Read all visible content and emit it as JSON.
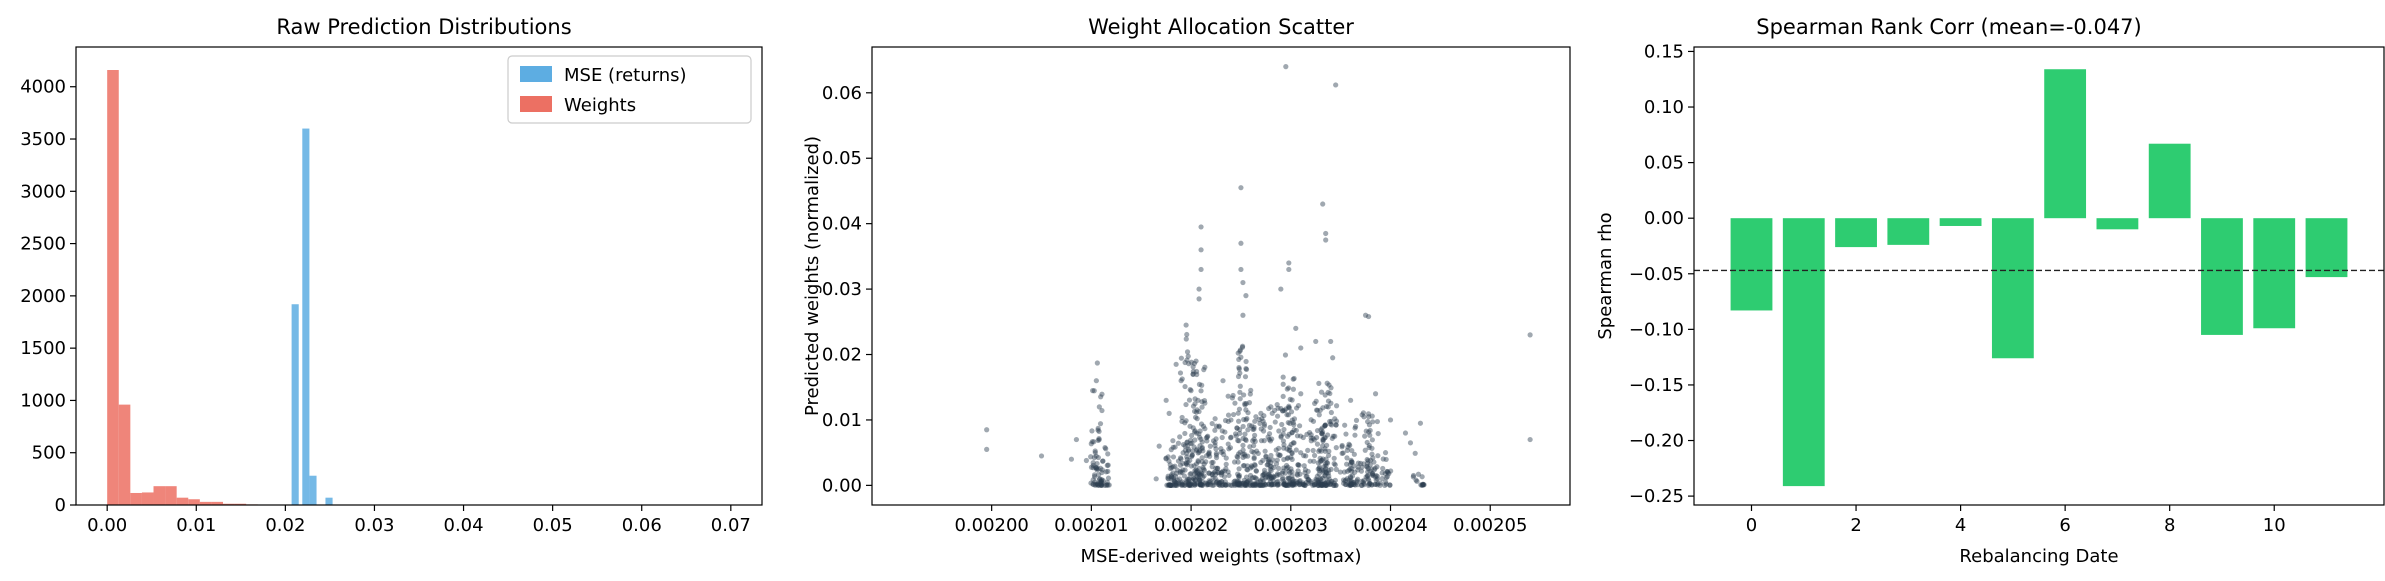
{
  "colors": {
    "mse": "#5dade2",
    "weights": "#ec7063",
    "scatter": "#2c3e50",
    "bars": "#2ecc71",
    "meanline": "#222222"
  },
  "chart_data": [
    {
      "type": "histogram",
      "title": "Raw Prediction Distributions",
      "xlabel": "",
      "ylabel": "",
      "xlim": [
        -0.0035,
        0.0735
      ],
      "ylim": [
        0,
        4380
      ],
      "xticks": [
        0.0,
        0.01,
        0.02,
        0.03,
        0.04,
        0.05,
        0.06,
        0.07
      ],
      "xtick_labels": [
        "0.00",
        "0.01",
        "0.02",
        "0.03",
        "0.04",
        "0.05",
        "0.06",
        "0.07"
      ],
      "yticks": [
        0,
        500,
        1000,
        1500,
        2000,
        2500,
        3000,
        3500,
        4000
      ],
      "yticks_labels": [
        "0",
        "500",
        "1000",
        "1500",
        "2000",
        "2500",
        "3000",
        "3500",
        "4000"
      ],
      "legend": {
        "placement": "top-right",
        "entries": [
          "MSE (returns)",
          "Weights"
        ]
      },
      "series": [
        {
          "name": "Weights",
          "color_key": "weights",
          "alpha": 0.85,
          "bins": [
            {
              "x0": 0.0,
              "x1": 0.0013,
              "count": 4160
            },
            {
              "x0": 0.0013,
              "x1": 0.0026,
              "count": 960
            },
            {
              "x0": 0.0026,
              "x1": 0.0039,
              "count": 115
            },
            {
              "x0": 0.0039,
              "x1": 0.0052,
              "count": 120
            },
            {
              "x0": 0.0052,
              "x1": 0.0065,
              "count": 180
            },
            {
              "x0": 0.0065,
              "x1": 0.0078,
              "count": 180
            },
            {
              "x0": 0.0078,
              "x1": 0.0091,
              "count": 70
            },
            {
              "x0": 0.0091,
              "x1": 0.0104,
              "count": 55
            },
            {
              "x0": 0.0104,
              "x1": 0.0117,
              "count": 30
            },
            {
              "x0": 0.0117,
              "x1": 0.013,
              "count": 30
            },
            {
              "x0": 0.013,
              "x1": 0.0143,
              "count": 12
            },
            {
              "x0": 0.0143,
              "x1": 0.0156,
              "count": 12
            },
            {
              "x0": 0.0156,
              "x1": 0.0169,
              "count": 6
            }
          ]
        },
        {
          "name": "MSE (returns)",
          "color_key": "mse",
          "alpha": 0.85,
          "bins": [
            {
              "x0": 0.0207,
              "x1": 0.0215,
              "count": 1920
            },
            {
              "x0": 0.0219,
              "x1": 0.0227,
              "count": 3600
            },
            {
              "x0": 0.0227,
              "x1": 0.0235,
              "count": 280
            },
            {
              "x0": 0.0245,
              "x1": 0.0253,
              "count": 70
            }
          ]
        }
      ]
    },
    {
      "type": "scatter",
      "title": "Weight Allocation Scatter",
      "xlabel": "MSE-derived weights (softmax)",
      "ylabel": "Predicted weights (normalized)",
      "xlim": [
        0.001988,
        0.002058
      ],
      "ylim": [
        -0.003,
        0.067
      ],
      "xticks": [
        0.002,
        0.00201,
        0.00202,
        0.00203,
        0.00204,
        0.00205
      ],
      "xtick_labels": [
        "0.00200",
        "0.00201",
        "0.00202",
        "0.00203",
        "0.00204",
        "0.00205"
      ],
      "yticks": [
        0.0,
        0.01,
        0.02,
        0.03,
        0.04,
        0.05,
        0.06
      ],
      "ytick_labels": [
        "0.00",
        "0.01",
        "0.02",
        "0.03",
        "0.04",
        "0.05",
        "0.06"
      ],
      "color_key": "scatter",
      "alpha": 0.45,
      "points": [
        [
          0.0019995,
          0.0085
        ],
        [
          0.0019995,
          0.0055
        ],
        [
          0.002005,
          0.0045
        ],
        [
          0.002008,
          0.004
        ],
        [
          0.0020085,
          0.007
        ],
        [
          0.0020095,
          0.0038
        ],
        [
          0.0020105,
          0.016
        ],
        [
          0.0020106,
          0.0187
        ],
        [
          0.0020108,
          0.012
        ],
        [
          0.0020165,
          0.001
        ],
        [
          0.0020168,
          0.006
        ],
        [
          0.0020175,
          0.013
        ],
        [
          0.0020178,
          0.011
        ],
        [
          0.0020195,
          0.0245
        ],
        [
          0.0020185,
          0.0185
        ],
        [
          0.002019,
          0.016
        ],
        [
          0.002021,
          0.0395
        ],
        [
          0.002021,
          0.036
        ],
        [
          0.002021,
          0.033
        ],
        [
          0.0020208,
          0.03
        ],
        [
          0.0020208,
          0.0285
        ],
        [
          0.0020205,
          0.019
        ],
        [
          0.0020202,
          0.017
        ],
        [
          0.0020232,
          0.016
        ],
        [
          0.002024,
          0.01
        ],
        [
          0.0020248,
          0.018
        ],
        [
          0.002025,
          0.0455
        ],
        [
          0.002025,
          0.037
        ],
        [
          0.002025,
          0.033
        ],
        [
          0.0020252,
          0.031
        ],
        [
          0.0020255,
          0.029
        ],
        [
          0.0020252,
          0.026
        ],
        [
          0.0020265,
          0.0105
        ],
        [
          0.002027,
          0.011
        ],
        [
          0.002028,
          0.012
        ],
        [
          0.002029,
          0.03
        ],
        [
          0.0020295,
          0.064
        ],
        [
          0.0020298,
          0.034
        ],
        [
          0.0020298,
          0.033
        ],
        [
          0.0020305,
          0.024
        ],
        [
          0.002031,
          0.021
        ],
        [
          0.002031,
          0.014
        ],
        [
          0.0020325,
          0.022
        ],
        [
          0.0020332,
          0.043
        ],
        [
          0.0020335,
          0.0385
        ],
        [
          0.0020335,
          0.0375
        ],
        [
          0.0020345,
          0.0612
        ],
        [
          0.002034,
          0.022
        ],
        [
          0.0020342,
          0.0195
        ],
        [
          0.002036,
          0.013
        ],
        [
          0.0020365,
          0.009
        ],
        [
          0.0020375,
          0.026
        ],
        [
          0.0020378,
          0.0258
        ],
        [
          0.0020385,
          0.014
        ],
        [
          0.00204,
          0.01
        ],
        [
          0.0020395,
          0.005
        ],
        [
          0.0020415,
          0.008
        ],
        [
          0.002042,
          0.0065
        ],
        [
          0.002043,
          0.0095
        ],
        [
          0.002054,
          0.023
        ],
        [
          0.002054,
          0.007
        ]
      ],
      "columns": [
        {
          "x": 0.0020105,
          "top": 0.016,
          "n": 45
        },
        {
          "x": 0.0020112,
          "top": 0.012,
          "n": 35
        },
        {
          "x": 0.0020195,
          "top": 0.0245,
          "n": 55
        },
        {
          "x": 0.0020201,
          "top": 0.019,
          "n": 45
        },
        {
          "x": 0.002018,
          "top": 0.0075,
          "n": 30
        },
        {
          "x": 0.0020185,
          "top": 0.008,
          "n": 30
        },
        {
          "x": 0.0020208,
          "top": 0.019,
          "n": 55
        },
        {
          "x": 0.0020213,
          "top": 0.012,
          "n": 45
        },
        {
          "x": 0.0020225,
          "top": 0.01,
          "n": 35
        },
        {
          "x": 0.002023,
          "top": 0.011,
          "n": 35
        },
        {
          "x": 0.0020243,
          "top": 0.014,
          "n": 40
        },
        {
          "x": 0.0020252,
          "top": 0.022,
          "n": 60
        },
        {
          "x": 0.0020258,
          "top": 0.015,
          "n": 45
        },
        {
          "x": 0.0020268,
          "top": 0.0105,
          "n": 35
        },
        {
          "x": 0.0020275,
          "top": 0.011,
          "n": 35
        },
        {
          "x": 0.0020282,
          "top": 0.012,
          "n": 40
        },
        {
          "x": 0.0020292,
          "top": 0.0125,
          "n": 40
        },
        {
          "x": 0.0020298,
          "top": 0.02,
          "n": 55
        },
        {
          "x": 0.0020304,
          "top": 0.014,
          "n": 45
        },
        {
          "x": 0.0020318,
          "top": 0.011,
          "n": 35
        },
        {
          "x": 0.0020328,
          "top": 0.013,
          "n": 45
        },
        {
          "x": 0.0020334,
          "top": 0.016,
          "n": 55
        },
        {
          "x": 0.002034,
          "top": 0.015,
          "n": 50
        },
        {
          "x": 0.0020355,
          "top": 0.0095,
          "n": 30
        },
        {
          "x": 0.0020362,
          "top": 0.011,
          "n": 35
        },
        {
          "x": 0.0020376,
          "top": 0.012,
          "n": 40
        },
        {
          "x": 0.0020382,
          "top": 0.011,
          "n": 35
        },
        {
          "x": 0.0020395,
          "top": 0.005,
          "n": 20
        },
        {
          "x": 0.0020428,
          "top": 0.0055,
          "n": 15
        }
      ]
    },
    {
      "type": "bar",
      "title": "Spearman Rank Corr (mean=-0.047)",
      "xlabel": "Rebalancing Date",
      "ylabel": "Spearman rho",
      "xlim": [
        -1.1,
        12.1
      ],
      "ylim": [
        -0.258,
        0.154
      ],
      "xticks": [
        0,
        2,
        4,
        6,
        8,
        10
      ],
      "xtick_labels": [
        "0",
        "2",
        "4",
        "6",
        "8",
        "10"
      ],
      "yticks": [
        -0.25,
        -0.2,
        -0.15,
        -0.1,
        -0.05,
        0.0,
        0.05,
        0.1,
        0.15
      ],
      "ytick_labels": [
        "−0.25",
        "−0.20",
        "−0.15",
        "−0.10",
        "−0.05",
        "0.00",
        "0.05",
        "0.10",
        "0.15"
      ],
      "categories": [
        0,
        1,
        2,
        3,
        4,
        5,
        6,
        7,
        8,
        9,
        10,
        11
      ],
      "values": [
        -0.083,
        -0.241,
        -0.026,
        -0.024,
        -0.007,
        -0.126,
        0.134,
        -0.01,
        0.067,
        -0.105,
        -0.099,
        -0.053
      ],
      "mean": -0.047,
      "color_key": "bars"
    }
  ]
}
